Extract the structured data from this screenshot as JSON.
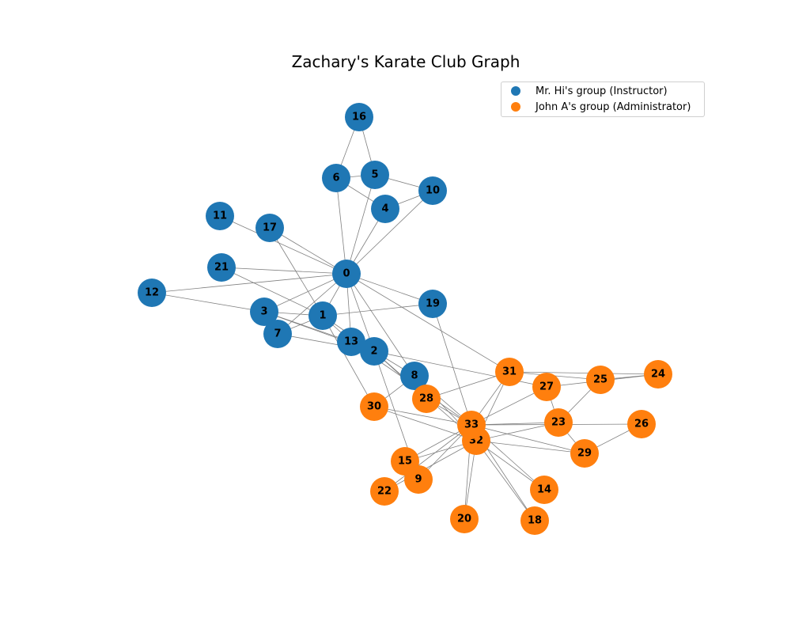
{
  "title": "Zachary's Karate Club Graph",
  "legend": [
    {
      "label": "Mr. Hi's group (Instructor)",
      "color": "#1f77b4"
    },
    {
      "label": "John A's group (Administrator)",
      "color": "#ff7f0e"
    }
  ],
  "colors": {
    "instructor": "#1f77b4",
    "administrator": "#ff7f0e",
    "edge": "#808080"
  },
  "nodes": [
    {
      "id": "0",
      "group": "instructor"
    },
    {
      "id": "1",
      "group": "instructor"
    },
    {
      "id": "2",
      "group": "instructor"
    },
    {
      "id": "3",
      "group": "instructor"
    },
    {
      "id": "4",
      "group": "instructor"
    },
    {
      "id": "5",
      "group": "instructor"
    },
    {
      "id": "6",
      "group": "instructor"
    },
    {
      "id": "7",
      "group": "instructor"
    },
    {
      "id": "8",
      "group": "instructor"
    },
    {
      "id": "9",
      "group": "administrator"
    },
    {
      "id": "10",
      "group": "instructor"
    },
    {
      "id": "11",
      "group": "instructor"
    },
    {
      "id": "12",
      "group": "instructor"
    },
    {
      "id": "13",
      "group": "instructor"
    },
    {
      "id": "14",
      "group": "administrator"
    },
    {
      "id": "15",
      "group": "administrator"
    },
    {
      "id": "16",
      "group": "instructor"
    },
    {
      "id": "17",
      "group": "instructor"
    },
    {
      "id": "18",
      "group": "administrator"
    },
    {
      "id": "19",
      "group": "instructor"
    },
    {
      "id": "20",
      "group": "administrator"
    },
    {
      "id": "21",
      "group": "instructor"
    },
    {
      "id": "22",
      "group": "administrator"
    },
    {
      "id": "23",
      "group": "administrator"
    },
    {
      "id": "24",
      "group": "administrator"
    },
    {
      "id": "25",
      "group": "administrator"
    },
    {
      "id": "26",
      "group": "administrator"
    },
    {
      "id": "27",
      "group": "administrator"
    },
    {
      "id": "28",
      "group": "administrator"
    },
    {
      "id": "29",
      "group": "administrator"
    },
    {
      "id": "30",
      "group": "administrator"
    },
    {
      "id": "31",
      "group": "administrator"
    },
    {
      "id": "32",
      "group": "administrator"
    },
    {
      "id": "33",
      "group": "administrator"
    }
  ],
  "edges": [
    [
      "0",
      "1"
    ],
    [
      "0",
      "2"
    ],
    [
      "0",
      "3"
    ],
    [
      "0",
      "4"
    ],
    [
      "0",
      "5"
    ],
    [
      "0",
      "6"
    ],
    [
      "0",
      "7"
    ],
    [
      "0",
      "8"
    ],
    [
      "0",
      "10"
    ],
    [
      "0",
      "11"
    ],
    [
      "0",
      "12"
    ],
    [
      "0",
      "13"
    ],
    [
      "0",
      "17"
    ],
    [
      "0",
      "19"
    ],
    [
      "0",
      "21"
    ],
    [
      "0",
      "31"
    ],
    [
      "1",
      "2"
    ],
    [
      "1",
      "3"
    ],
    [
      "1",
      "7"
    ],
    [
      "1",
      "13"
    ],
    [
      "1",
      "17"
    ],
    [
      "1",
      "19"
    ],
    [
      "1",
      "21"
    ],
    [
      "1",
      "30"
    ],
    [
      "2",
      "3"
    ],
    [
      "2",
      "7"
    ],
    [
      "2",
      "8"
    ],
    [
      "2",
      "9"
    ],
    [
      "2",
      "13"
    ],
    [
      "2",
      "27"
    ],
    [
      "2",
      "28"
    ],
    [
      "2",
      "32"
    ],
    [
      "3",
      "7"
    ],
    [
      "3",
      "12"
    ],
    [
      "3",
      "13"
    ],
    [
      "4",
      "6"
    ],
    [
      "4",
      "10"
    ],
    [
      "5",
      "6"
    ],
    [
      "5",
      "10"
    ],
    [
      "5",
      "16"
    ],
    [
      "6",
      "16"
    ],
    [
      "8",
      "30"
    ],
    [
      "8",
      "32"
    ],
    [
      "8",
      "33"
    ],
    [
      "9",
      "33"
    ],
    [
      "13",
      "33"
    ],
    [
      "14",
      "32"
    ],
    [
      "14",
      "33"
    ],
    [
      "15",
      "32"
    ],
    [
      "15",
      "33"
    ],
    [
      "18",
      "32"
    ],
    [
      "18",
      "33"
    ],
    [
      "19",
      "33"
    ],
    [
      "20",
      "32"
    ],
    [
      "20",
      "33"
    ],
    [
      "22",
      "32"
    ],
    [
      "22",
      "33"
    ],
    [
      "23",
      "25"
    ],
    [
      "23",
      "27"
    ],
    [
      "23",
      "29"
    ],
    [
      "23",
      "32"
    ],
    [
      "23",
      "33"
    ],
    [
      "24",
      "25"
    ],
    [
      "24",
      "27"
    ],
    [
      "24",
      "31"
    ],
    [
      "25",
      "31"
    ],
    [
      "26",
      "29"
    ],
    [
      "26",
      "33"
    ],
    [
      "27",
      "33"
    ],
    [
      "28",
      "31"
    ],
    [
      "28",
      "33"
    ],
    [
      "29",
      "32"
    ],
    [
      "29",
      "33"
    ],
    [
      "30",
      "32"
    ],
    [
      "30",
      "33"
    ],
    [
      "31",
      "32"
    ],
    [
      "31",
      "33"
    ],
    [
      "32",
      "33"
    ]
  ]
}
